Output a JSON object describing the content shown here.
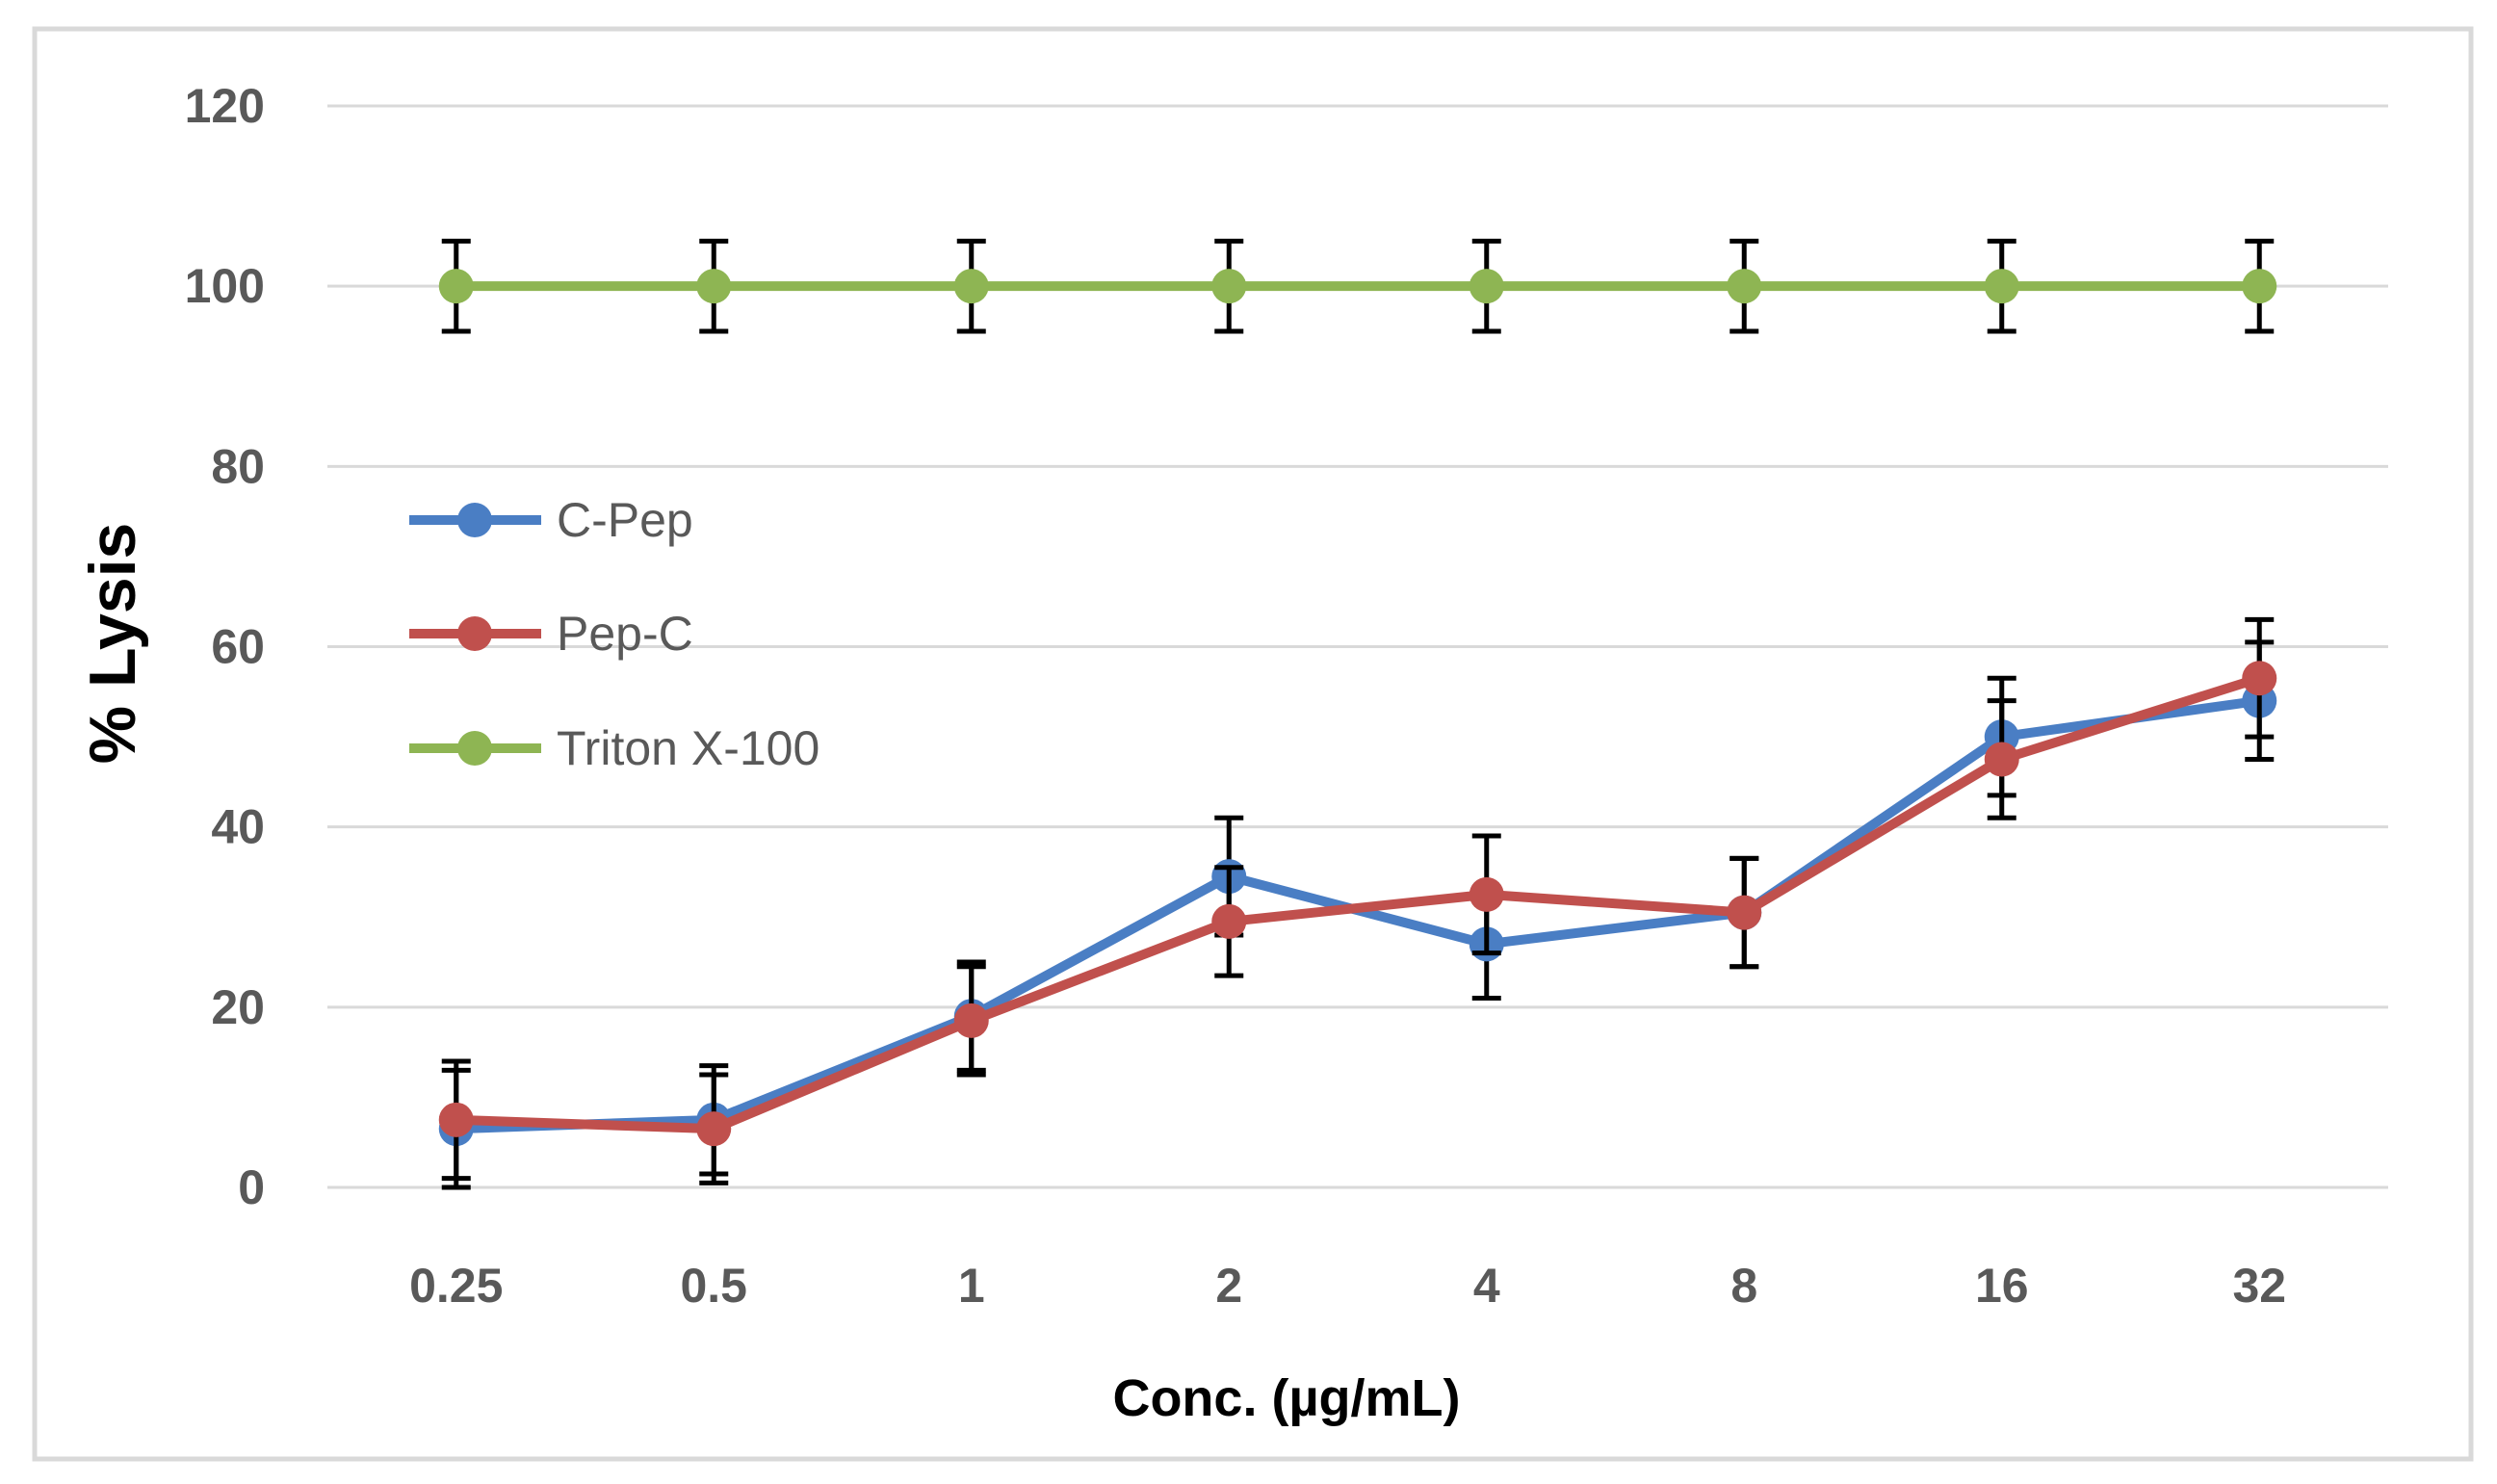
{
  "chart_data": {
    "type": "line",
    "title": "",
    "xlabel": "Conc. (µg/mL)",
    "ylabel": "% Lysis",
    "categories": [
      "0.25",
      "0.5",
      "1",
      "2",
      "4",
      "8",
      "16",
      "32"
    ],
    "ylim": [
      0,
      120
    ],
    "yticks": [
      "0",
      "20",
      "40",
      "60",
      "80",
      "100",
      "120"
    ],
    "ytick_values": [
      0,
      20,
      40,
      60,
      80,
      100,
      120
    ],
    "grid": "horizontal",
    "legend_position": "left",
    "series": [
      {
        "name": "C-Pep",
        "color": "#4A7EC4",
        "values": [
          6.5,
          7.5,
          19,
          34.5,
          27,
          30.5,
          50,
          54
        ],
        "errors": [
          6.5,
          6,
          6,
          6.5,
          6,
          6,
          6.5,
          6.5
        ]
      },
      {
        "name": "Pep-C",
        "color": "#C0504D",
        "values": [
          7.5,
          6.5,
          18.5,
          29.5,
          32.5,
          30.5,
          47.5,
          56.5
        ],
        "errors": [
          6.5,
          6,
          6,
          6,
          6.5,
          6,
          6.5,
          6.5
        ]
      },
      {
        "name": "Triton X-100",
        "color": "#8EB553",
        "values": [
          100,
          100,
          100,
          100,
          100,
          100,
          100,
          100
        ],
        "errors": [
          5,
          5,
          5,
          5,
          5,
          5,
          5,
          5
        ]
      }
    ]
  }
}
